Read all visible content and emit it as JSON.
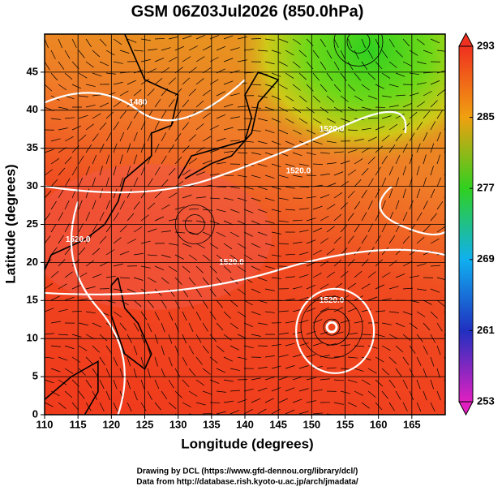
{
  "chart_data": {
    "type": "map",
    "title": "GSM 06Z03Jul2026 (850.0hPa)",
    "xlabel": "Longitude (degrees)",
    "ylabel": "Latitude  (degrees)",
    "xlim": [
      110,
      170
    ],
    "ylim": [
      0,
      50
    ],
    "xticks": [
      110,
      115,
      120,
      125,
      130,
      135,
      140,
      145,
      150,
      155,
      160,
      165
    ],
    "yticks": [
      0,
      5,
      10,
      15,
      20,
      25,
      30,
      35,
      40,
      45
    ],
    "grid": true,
    "colorbar": {
      "lim": [
        253,
        293
      ],
      "ticks": [
        253,
        261,
        269,
        277,
        285,
        293
      ],
      "colors": [
        "#e020c0",
        "#2030c0",
        "#10b0f0",
        "#30d020",
        "#f0a010",
        "#f03020"
      ]
    },
    "contour_labels": [
      "1480",
      "1520.0",
      "1520.0",
      "1520.0",
      "1520.0",
      "1520.0"
    ],
    "notes": [
      "Drawing by DCL (https://www.gfd-dennou.org/library/dcl/)",
      "Data from http://database.rish.kyoto-u.ac.jp/arch/jmadata/"
    ]
  }
}
